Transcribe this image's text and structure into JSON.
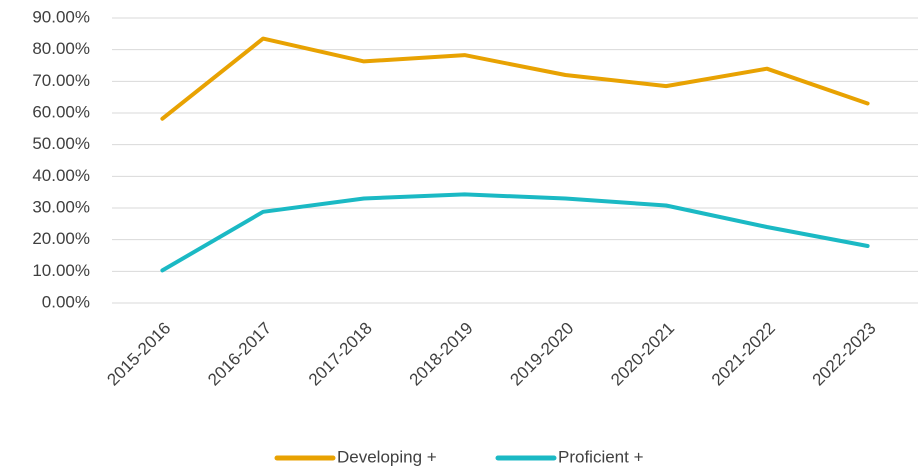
{
  "chart_data": {
    "type": "line",
    "categories": [
      "2015-2016",
      "2016-2017",
      "2017-2018",
      "2018-2019",
      "2019-2020",
      "2020-2021",
      "2021-2022",
      "2022-2023"
    ],
    "series": [
      {
        "name": "Developing +",
        "color": "#e8a202",
        "values": [
          58.2,
          83.5,
          76.3,
          78.3,
          72,
          68.5,
          74,
          63
        ]
      },
      {
        "name": "Proficient +",
        "color": "#1bb9c4",
        "values": [
          10.3,
          28.8,
          33,
          34.3,
          33,
          30.8,
          24,
          18
        ]
      }
    ],
    "ylim": [
      0,
      90
    ],
    "yticks": [
      {
        "value": 0,
        "label": "0.00%"
      },
      {
        "value": 10,
        "label": "10.00%"
      },
      {
        "value": 20,
        "label": "20.00%"
      },
      {
        "value": 30,
        "label": "30.00%"
      },
      {
        "value": 40,
        "label": "40.00%"
      },
      {
        "value": 50,
        "label": "50.00%"
      },
      {
        "value": 60,
        "label": "60.00%"
      },
      {
        "value": 70,
        "label": "70.00%"
      },
      {
        "value": 80,
        "label": "80.00%"
      },
      {
        "value": 90,
        "label": "90.00%"
      }
    ],
    "grid": true,
    "legend": "bottom"
  }
}
